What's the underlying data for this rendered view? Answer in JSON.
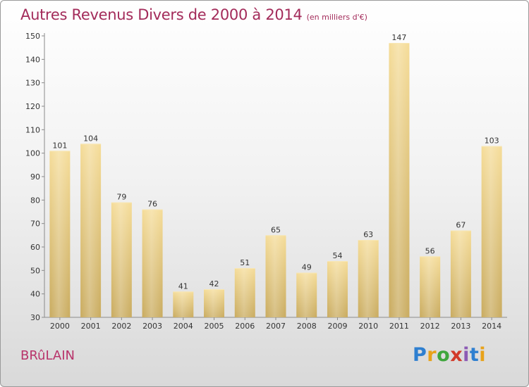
{
  "title": "Autres Revenus Divers de 2000 à 2014",
  "title_unit": "(en milliers d'€)",
  "commune": "BRûLAIN",
  "logo": {
    "parts": [
      "P",
      "r",
      "o",
      "x",
      "i",
      "t",
      "i"
    ]
  },
  "colors": {
    "title": "#a32b5a",
    "commune": "#b8336a",
    "bar_light": "#f5dc98",
    "bar_dark": "#c9ab5f"
  },
  "chart_data": {
    "type": "bar",
    "categories": [
      "2000",
      "2001",
      "2002",
      "2003",
      "2004",
      "2005",
      "2006",
      "2007",
      "2008",
      "2009",
      "2010",
      "2011",
      "2012",
      "2013",
      "2014"
    ],
    "values": [
      101,
      104,
      79,
      76,
      41,
      42,
      51,
      65,
      49,
      54,
      63,
      147,
      56,
      67,
      103
    ],
    "ylim": [
      30,
      150
    ],
    "yticks": [
      30,
      40,
      50,
      60,
      70,
      80,
      90,
      100,
      110,
      120,
      130,
      140,
      150
    ],
    "grid": false,
    "legend": "none"
  }
}
